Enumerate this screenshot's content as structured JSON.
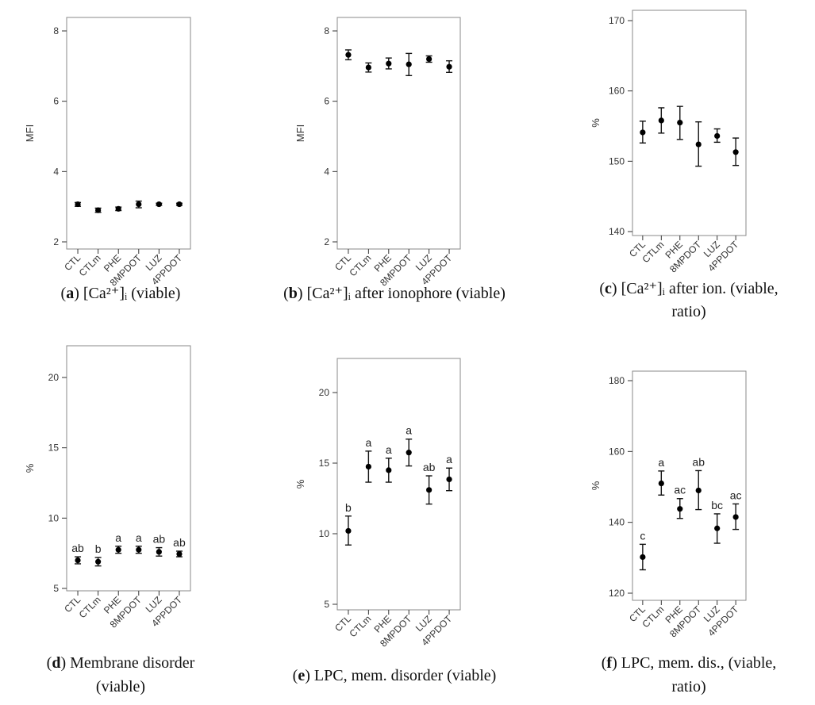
{
  "chart_data": [
    {
      "type": "scatter",
      "panel": "a",
      "caption": {
        "letter": "a",
        "lines": [
          " [Ca²⁺]ᵢ (viable)"
        ]
      },
      "ylabel": "MFI",
      "ylim": [
        1.85,
        8.6
      ],
      "yticks": [
        "2",
        "4",
        "6",
        "8"
      ],
      "categories": [
        "CTL",
        "CTLm",
        "PHE",
        "8MPDOT",
        "LUZ",
        "4PPDOT"
      ],
      "values": [
        3.07,
        2.9,
        2.94,
        3.07,
        3.07,
        3.07
      ],
      "err_low": [
        3.01,
        2.84,
        2.89,
        2.97,
        3.04,
        3.04
      ],
      "err_high": [
        3.12,
        2.96,
        2.99,
        3.16,
        3.1,
        3.1
      ],
      "letters": []
    },
    {
      "type": "scatter",
      "panel": "b",
      "caption": {
        "letter": "b",
        "lines": [
          " [Ca²⁺]ᵢ after ionophore (viable)"
        ]
      },
      "ylabel": "MFI",
      "ylim": [
        1.85,
        8.6
      ],
      "yticks": [
        "2",
        "4",
        "6",
        "8"
      ],
      "categories": [
        "CTL",
        "CTLm",
        "PHE",
        "8MPDOT",
        "LUZ",
        "4PPDOT"
      ],
      "values": [
        7.32,
        6.96,
        7.07,
        7.05,
        7.2,
        6.98
      ],
      "err_low": [
        7.18,
        6.83,
        6.92,
        6.73,
        7.11,
        6.82
      ],
      "err_high": [
        7.46,
        7.09,
        7.23,
        7.36,
        7.29,
        7.15
      ],
      "letters": []
    },
    {
      "type": "scatter",
      "panel": "c",
      "caption": {
        "letter": "c",
        "lines": [
          " [Ca²⁺]ᵢ after ion. (viable,",
          "ratio)"
        ]
      },
      "ylabel": "%",
      "ylim": [
        138.9,
        171.4
      ],
      "yticks": [
        "140",
        "150",
        "160",
        "170"
      ],
      "categories": [
        "CTL",
        "CTLm",
        "PHE",
        "8MPDOT",
        "LUZ",
        "4PPDOT"
      ],
      "values": [
        154.1,
        155.8,
        155.5,
        152.4,
        153.6,
        151.3
      ],
      "err_low": [
        152.6,
        154.0,
        153.1,
        149.3,
        152.7,
        149.4
      ],
      "err_high": [
        155.7,
        157.6,
        157.8,
        155.6,
        154.6,
        153.3
      ],
      "letters": []
    },
    {
      "type": "scatter",
      "panel": "d",
      "caption": {
        "letter": "d",
        "lines": [
          " Membrane disorder",
          "(viable)"
        ]
      },
      "ylabel": "%",
      "ylim": [
        4.3,
        21.5
      ],
      "yticks": [
        "5",
        "10",
        "15",
        "20"
      ],
      "categories": [
        "CTL",
        "CTLm",
        "PHE",
        "8MPDOT",
        "LUZ",
        "4PPDOT"
      ],
      "values": [
        7.0,
        6.9,
        7.75,
        7.75,
        7.6,
        7.45
      ],
      "err_low": [
        6.75,
        6.6,
        7.5,
        7.5,
        7.3,
        7.25
      ],
      "err_high": [
        7.25,
        7.2,
        8.0,
        8.0,
        7.9,
        7.65
      ],
      "letters": [
        "ab",
        "b",
        "a",
        "a",
        "ab",
        "ab"
      ]
    },
    {
      "type": "scatter",
      "panel": "e",
      "caption": {
        "letter": "e",
        "lines": [
          " LPC, mem. disorder (viable)"
        ]
      },
      "ylabel": "%",
      "ylim": [
        4.3,
        21.0
      ],
      "yticks": [
        "5",
        "10",
        "15",
        "20"
      ],
      "categories": [
        "CTL",
        "CTLm",
        "PHE",
        "8MPDOT",
        "LUZ",
        "4PPDOT"
      ],
      "values": [
        10.2,
        14.75,
        14.5,
        15.75,
        13.1,
        13.85
      ],
      "err_low": [
        9.2,
        13.65,
        13.65,
        14.8,
        12.1,
        13.05
      ],
      "err_high": [
        11.25,
        15.85,
        15.35,
        16.7,
        14.1,
        14.65
      ],
      "letters": [
        "b",
        "a",
        "a",
        "a",
        "ab",
        "a"
      ]
    },
    {
      "type": "scatter",
      "panel": "f",
      "caption": {
        "letter": "f",
        "lines": [
          " LPC, mem. dis., (viable,",
          "ratio)"
        ]
      },
      "ylabel": "%",
      "ylim": [
        116.9,
        183.8
      ],
      "yticks": [
        "120",
        "140",
        "160",
        "180"
      ],
      "categories": [
        "CTL",
        "CTLm",
        "PHE",
        "8MPDOT",
        "LUZ",
        "4PPDOT"
      ],
      "values": [
        130.2,
        151.0,
        143.8,
        149.0,
        138.3,
        141.5
      ],
      "err_low": [
        126.6,
        147.7,
        141.1,
        143.6,
        134.1,
        138.0
      ],
      "err_high": [
        133.8,
        154.5,
        146.7,
        154.6,
        142.4,
        145.2
      ],
      "letters": [
        "c",
        "a",
        "ac",
        "ab",
        "bc",
        "ac"
      ]
    }
  ]
}
